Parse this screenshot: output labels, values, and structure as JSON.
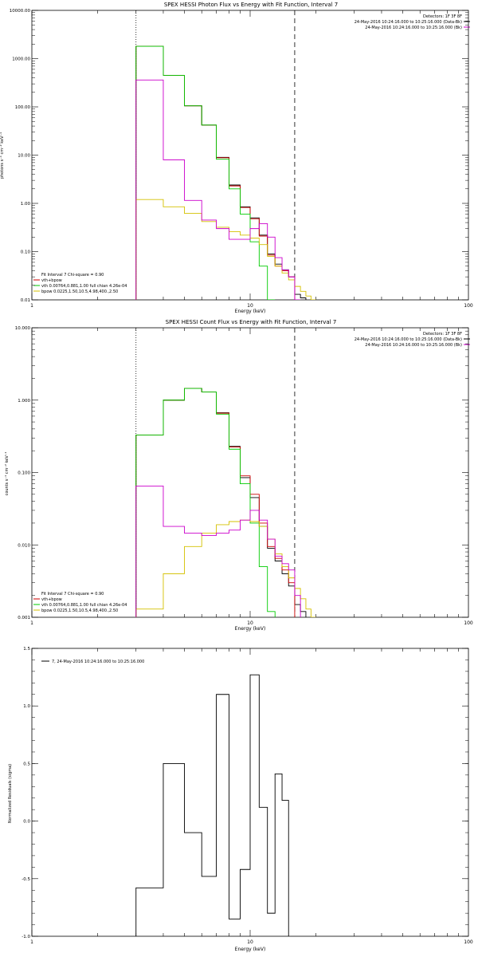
{
  "colors": {
    "data": "#000000",
    "total": "#cc0000",
    "vth": "#00cc00",
    "bpow": "#d4c000",
    "bk": "#cc00cc"
  },
  "chart_data": [
    {
      "type": "line",
      "title": "SPEX HESSI Photon Flux vs Energy with Fit Function, Interval 7",
      "xlabel": "Energy (keV)",
      "ylabel": "photons s⁻¹ cm⁻² keV⁻¹",
      "xlim": [
        1,
        100
      ],
      "ylim": [
        0.01,
        10000
      ],
      "xscale": "log",
      "yscale": "log",
      "xticks": [
        1,
        10,
        100
      ],
      "xtick_labels": [
        "1",
        "10",
        "100"
      ],
      "yticks": [
        0.01,
        0.1,
        1,
        10,
        100,
        1000,
        10000
      ],
      "ytick_labels": [
        "0.01",
        "0.10",
        "1.00",
        "10.00",
        "100.00",
        "1000.00",
        "10000.00"
      ],
      "vlines": [
        {
          "x": 3.0,
          "style": "dotted"
        },
        {
          "x": 16.0,
          "style": "dashed"
        }
      ],
      "header": [
        "Detectors: 1F 3F 8F",
        "24-May-2016 10:24:16.000 to 10:25:16.000 (Data-Bk)",
        "24-May-2016 10:24:16.000 to 10:25:16.000 (Bk)"
      ],
      "legend": {
        "placement": "bottom-left",
        "heading": "Fit Interval 7   Chi-square = 0.90",
        "entries": [
          "vth+bpow",
          "vth 0.00764,0.881,1.00  full chian 4.26e-04",
          "bpow 0.0225,1.50,10.5,4.98,400.,2.50"
        ]
      },
      "edges": [
        3,
        4,
        5,
        6,
        7,
        8,
        9,
        10,
        11,
        12,
        13,
        14,
        15,
        16,
        17,
        18,
        19,
        20
      ],
      "series": [
        {
          "name": "(Data-Bk)",
          "color_key": "data",
          "values": [
            1800,
            450,
            105,
            42,
            9.0,
            2.4,
            0.85,
            0.5,
            0.22,
            0.09,
            0.055,
            0.042,
            0.03,
            0.013,
            0.011
          ]
        },
        {
          "name": "vth+bpow",
          "color_key": "total",
          "values": [
            1800,
            450,
            105,
            42,
            8.8,
            2.3,
            0.82,
            0.48,
            0.21,
            0.085,
            0.05,
            0.04,
            0.03
          ]
        },
        {
          "name": "vth",
          "color_key": "vth",
          "values": [
            1800,
            450,
            105,
            42,
            8.2,
            2.0,
            0.6,
            0.16,
            0.05,
            0.01
          ]
        },
        {
          "name": "bpow",
          "color_key": "bpow",
          "values": [
            1.2,
            0.85,
            0.62,
            0.42,
            0.32,
            0.26,
            0.22,
            0.19,
            0.14,
            0.08,
            0.05,
            0.036,
            0.026,
            0.019,
            0.015,
            0.012,
            0.01
          ]
        },
        {
          "name": "(Bk)",
          "color_key": "bk",
          "values": [
            360,
            8.0,
            1.15,
            0.45,
            0.3,
            0.18,
            0.18,
            0.3,
            0.38,
            0.2,
            0.075,
            0.042,
            0.03,
            0.01
          ]
        }
      ]
    },
    {
      "type": "line",
      "title": "SPEX HESSI Count Flux vs Energy with Fit Function, Interval 7",
      "xlabel": "Energy (keV)",
      "ylabel": "counts s⁻¹ cm⁻² keV⁻¹",
      "xlim": [
        1,
        100
      ],
      "ylim": [
        0.001,
        10
      ],
      "xscale": "log",
      "yscale": "log",
      "xticks": [
        1,
        10,
        100
      ],
      "xtick_labels": [
        "1",
        "10",
        "100"
      ],
      "yticks": [
        0.001,
        0.01,
        0.1,
        1,
        10
      ],
      "ytick_labels": [
        "0.001",
        "0.010",
        "0.100",
        "1.000",
        "10.000"
      ],
      "vlines": [
        {
          "x": 3.0,
          "style": "dotted"
        },
        {
          "x": 16.0,
          "style": "dashed"
        }
      ],
      "header": [
        "Detectors: 1F 3F 8F",
        "24-May-2016 10:24:16.000 to 10:25:16.000 (Data-Bk)",
        "24-May-2016 10:24:16.000 to 10:25:16.000 (Bk)"
      ],
      "legend": {
        "placement": "bottom-left",
        "heading": "Fit Interval 7   Chi-square = 0.90",
        "entries": [
          "vth+bpow",
          "vth 0.00764,0.881,1.00  full chian 4.26e-04",
          "bpow 0.0225,1.50,10.5,4.98,400.,2.50"
        ]
      },
      "edges": [
        3,
        4,
        5,
        6,
        7,
        8,
        9,
        10,
        11,
        12,
        13,
        14,
        15,
        16,
        17,
        18,
        19,
        20
      ],
      "series": [
        {
          "name": "(Data-Bk)",
          "color_key": "data",
          "values": [
            0.33,
            1.0,
            1.45,
            1.3,
            0.67,
            0.23,
            0.085,
            0.045,
            0.018,
            0.009,
            0.006,
            0.004,
            0.0027,
            0.0015,
            0.0012
          ]
        },
        {
          "name": "vth+bpow",
          "color_key": "total",
          "values": [
            0.33,
            1.0,
            1.45,
            1.3,
            0.66,
            0.225,
            0.09,
            0.05,
            0.02,
            0.0095,
            0.0065,
            0.0045,
            0.003
          ]
        },
        {
          "name": "vth",
          "color_key": "vth",
          "values": [
            0.33,
            1.0,
            1.45,
            1.3,
            0.64,
            0.21,
            0.07,
            0.02,
            0.005,
            0.0012
          ]
        },
        {
          "name": "bpow",
          "color_key": "bpow",
          "values": [
            0.0013,
            0.004,
            0.0095,
            0.0145,
            0.019,
            0.021,
            0.022,
            0.021,
            0.018,
            0.012,
            0.0075,
            0.005,
            0.0035,
            0.0025,
            0.0018,
            0.0013,
            0.001
          ]
        },
        {
          "name": "(Bk)",
          "color_key": "bk",
          "values": [
            0.065,
            0.018,
            0.0145,
            0.0135,
            0.0145,
            0.016,
            0.022,
            0.03,
            0.022,
            0.012,
            0.007,
            0.0055,
            0.0045,
            0.002
          ]
        }
      ]
    },
    {
      "type": "line",
      "title": "",
      "xlabel": "Energy (keV)",
      "ylabel": "Normalized Residuals (sigma)",
      "xlim": [
        1,
        100
      ],
      "ylim": [
        -1.0,
        1.5
      ],
      "xscale": "log",
      "yscale": "linear",
      "xticks": [
        1,
        10,
        100
      ],
      "xtick_labels": [
        "1",
        "10",
        "100"
      ],
      "yticks": [
        -1.0,
        -0.5,
        0.0,
        0.5,
        1.0,
        1.5
      ],
      "ytick_labels": [
        "-1.0",
        "-0.5",
        "0.0",
        "0.5",
        "1.0",
        "1.5"
      ],
      "header": [],
      "legend": {
        "placement": "top-left",
        "heading": "",
        "entries": [
          "7, 24-May-2016 10:24:16.000 to 10:25:16.000"
        ]
      },
      "edges": [
        3,
        4,
        5,
        6,
        7,
        8,
        9,
        10,
        11,
        12,
        13,
        14,
        15,
        16
      ],
      "series": [
        {
          "name": "7, 24-May-2016 10:24:16.000 to 10:25:16.000",
          "color_key": "data",
          "values": [
            -0.58,
            0.5,
            -0.1,
            -0.48,
            1.1,
            -0.85,
            -0.42,
            1.27,
            0.12,
            -0.8,
            0.41,
            0.18
          ],
          "edges": [
            3,
            4,
            5,
            6,
            7,
            8,
            9,
            10,
            11,
            12,
            13,
            14,
            15
          ]
        }
      ]
    }
  ]
}
